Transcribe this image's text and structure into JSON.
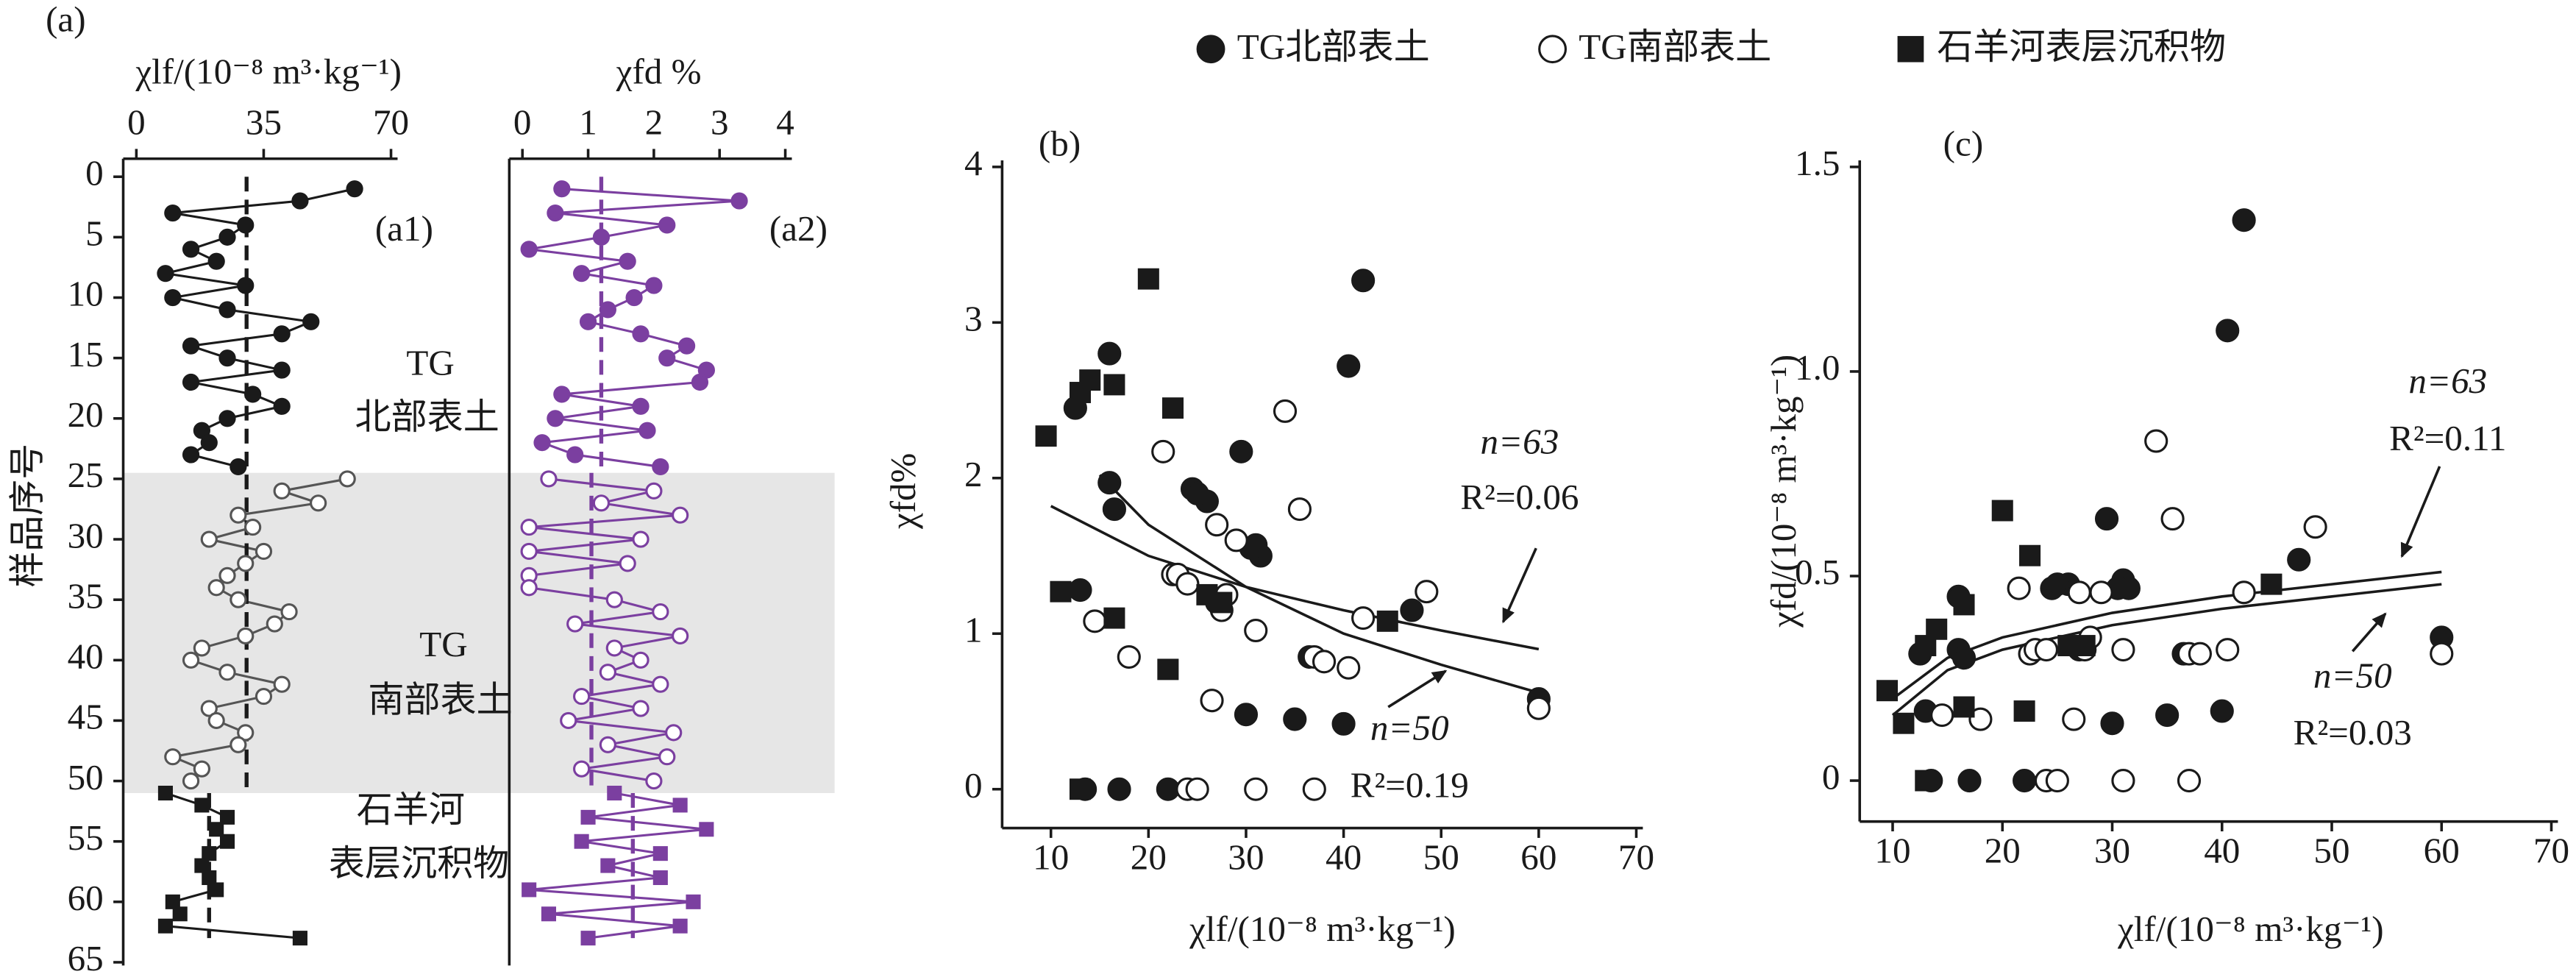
{
  "chart_data": [
    {
      "type": "profile",
      "label": "(a)",
      "panel_label": "(a1)",
      "xlabel": "χlf/(10⁻⁸ m³·kg⁻¹)",
      "ylabel": "样品序号",
      "xlim": [
        0,
        70
      ],
      "xticks": [
        0,
        35,
        70
      ],
      "ylim": [
        0,
        65
      ],
      "yticks": [
        0,
        5,
        10,
        15,
        20,
        25,
        30,
        35,
        40,
        45,
        50,
        55,
        60,
        65
      ],
      "shade": [
        24.5,
        51
      ],
      "annotations": [
        "TG",
        "北部表土",
        "TG",
        "南部表土",
        "石羊河",
        "表层沉积物"
      ],
      "mean_lines": [
        {
          "value": 30.3,
          "y": [
            0,
            51
          ]
        },
        {
          "value": 20,
          "y": [
            51,
            63
          ]
        }
      ],
      "series": [
        {
          "marker": "filled-circle",
          "color": "#1a1a1a",
          "y": [
            1,
            2,
            3,
            4,
            5,
            6,
            7,
            8,
            9,
            10,
            11,
            12,
            13,
            14,
            15,
            16,
            17,
            18,
            19,
            20,
            21,
            22,
            23,
            24
          ],
          "values": [
            60,
            45,
            10,
            30,
            25,
            15,
            22,
            8,
            30,
            10,
            25,
            48,
            40,
            15,
            25,
            40,
            15,
            32,
            40,
            25,
            18,
            20,
            15,
            28
          ]
        },
        {
          "marker": "open-circle",
          "color": "#555555",
          "y": [
            25,
            26,
            27,
            28,
            29,
            30,
            31,
            32,
            33,
            34,
            35,
            36,
            37,
            38,
            39,
            40,
            41,
            42,
            43,
            44,
            45,
            46,
            47,
            48,
            49,
            50
          ],
          "values": [
            58,
            40,
            50,
            28,
            32,
            20,
            35,
            30,
            25,
            22,
            28,
            42,
            38,
            30,
            18,
            15,
            25,
            40,
            35,
            20,
            22,
            30,
            28,
            10,
            18,
            15
          ]
        },
        {
          "marker": "square",
          "color": "#1a1a1a",
          "y": [
            51,
            52,
            53,
            54,
            55,
            56,
            57,
            58,
            59,
            60,
            61,
            62,
            63
          ],
          "values": [
            8,
            18,
            25,
            22,
            25,
            20,
            18,
            20,
            22,
            10,
            12,
            8,
            45
          ]
        }
      ]
    },
    {
      "type": "profile",
      "panel_label": "(a2)",
      "xlabel": "χfd %",
      "xlim": [
        0,
        4
      ],
      "xticks": [
        0,
        1,
        2,
        3,
        4
      ],
      "ylim": [
        0,
        65
      ],
      "mean_lines": [
        {
          "value": 1.2,
          "y": [
            0,
            24.5
          ]
        },
        {
          "value": 1.05,
          "y": [
            24.5,
            51
          ]
        },
        {
          "value": 1.68,
          "y": [
            51,
            63
          ]
        }
      ],
      "series": [
        {
          "marker": "filled-circle",
          "color": "#7b3fa0",
          "y": [
            1,
            2,
            3,
            4,
            5,
            6,
            7,
            8,
            9,
            10,
            11,
            12,
            13,
            14,
            15,
            16,
            17,
            18,
            19,
            20,
            21,
            22,
            23,
            24
          ],
          "values": [
            0.6,
            3.3,
            0.5,
            2.2,
            1.2,
            0.1,
            1.6,
            0.9,
            2.0,
            1.7,
            1.3,
            1.0,
            1.8,
            2.5,
            2.2,
            2.8,
            2.7,
            0.6,
            1.8,
            0.5,
            1.9,
            0.3,
            0.8,
            2.1
          ]
        },
        {
          "marker": "open-circle",
          "color": "#7b3fa0",
          "y": [
            25,
            26,
            27,
            28,
            29,
            30,
            31,
            32,
            33,
            34,
            35,
            36,
            37,
            38,
            39,
            40,
            41,
            42,
            43,
            44,
            45,
            46,
            47,
            48,
            49,
            50
          ],
          "values": [
            0.4,
            2.0,
            1.2,
            2.4,
            0.1,
            1.8,
            0.1,
            1.6,
            0.1,
            0.1,
            1.4,
            2.1,
            0.8,
            2.4,
            1.4,
            1.8,
            1.3,
            2.1,
            0.9,
            1.8,
            0.7,
            2.3,
            1.3,
            2.2,
            0.9,
            2.0
          ]
        },
        {
          "marker": "square",
          "color": "#7b3fa0",
          "y": [
            51,
            52,
            53,
            54,
            55,
            56,
            57,
            58,
            59,
            60,
            61,
            62,
            63
          ],
          "values": [
            1.4,
            2.4,
            1.0,
            2.8,
            0.9,
            2.1,
            1.3,
            2.1,
            0.1,
            2.6,
            0.4,
            2.4,
            1.0
          ]
        }
      ]
    },
    {
      "type": "scatter",
      "panel_label": "(b)",
      "xlabel": "χlf/(10⁻⁸ m³·kg⁻¹)",
      "ylabel": "χfd%",
      "xlim": [
        5,
        70
      ],
      "xticks": [
        10,
        20,
        30,
        40,
        50,
        60,
        70
      ],
      "ylim": [
        -0.25,
        4
      ],
      "yticks": [
        0,
        1,
        2,
        3,
        4
      ],
      "series": [
        {
          "name": "TG北部表土",
          "marker": "filled-circle",
          "color": "#1a1a1a",
          "x": [
            12.5,
            16,
            16,
            16.5,
            13,
            24.5,
            26,
            29.5,
            31,
            31.5,
            27,
            36.5,
            30,
            35,
            40,
            42,
            40.5,
            47,
            60,
            13.5,
            17,
            22,
            30.5,
            25
          ],
          "values": [
            2.45,
            2.8,
            1.97,
            1.8,
            1.28,
            1.93,
            1.85,
            2.17,
            1.57,
            1.5,
            1.2,
            0.85,
            0.48,
            0.45,
            0.42,
            3.27,
            2.72,
            1.15,
            0.58,
            0,
            0,
            0,
            1.55,
            1.9
          ]
        },
        {
          "name": "TG南部表土",
          "marker": "open-circle",
          "color": "#1a1a1a",
          "x": [
            14.5,
            18,
            21.5,
            22.5,
            23,
            24,
            27,
            27.5,
            29,
            31,
            34,
            35.5,
            37,
            38,
            40.5,
            42,
            48.5,
            60,
            26.5,
            24,
            25,
            31,
            37,
            28
          ],
          "values": [
            1.08,
            0.85,
            2.17,
            1.38,
            1.38,
            1.32,
            1.7,
            1.15,
            1.6,
            1.02,
            2.43,
            1.8,
            0.85,
            0.82,
            0.78,
            1.1,
            1.27,
            0.52,
            0.57,
            0,
            0,
            0,
            0,
            1.25
          ]
        },
        {
          "name": "石羊河表层沉积物",
          "marker": "square",
          "color": "#1a1a1a",
          "x": [
            9.5,
            11,
            13,
            14,
            16.5,
            16.5,
            20,
            22,
            22.5,
            26,
            27.5,
            44.5,
            13
          ],
          "values": [
            2.27,
            1.27,
            2.55,
            2.63,
            2.6,
            1.1,
            3.28,
            0.77,
            2.45,
            1.25,
            1.2,
            1.08,
            0
          ]
        }
      ],
      "fits": [
        {
          "labels": [
            "n=63",
            "R²=0.06"
          ],
          "x": [
            10,
            20,
            30,
            40,
            50,
            60
          ],
          "y": [
            1.82,
            1.5,
            1.3,
            1.15,
            1.02,
            0.9
          ]
        },
        {
          "labels": [
            "n=50",
            "R²=0.19"
          ],
          "x": [
            15,
            20,
            30,
            40,
            50,
            60
          ],
          "y": [
            2.02,
            1.7,
            1.3,
            1.0,
            0.8,
            0.62
          ]
        }
      ]
    },
    {
      "type": "scatter",
      "panel_label": "(c)",
      "xlabel": "χlf/(10⁻⁸ m³·kg⁻¹)",
      "ylabel": "χfd/(10⁻⁸ m³·kg⁻¹)",
      "xlim": [
        7,
        70
      ],
      "xticks": [
        10,
        20,
        30,
        40,
        50,
        60,
        70
      ],
      "ylim": [
        -0.1,
        1.5
      ],
      "yticks": [
        0,
        0.5,
        {
          "value": 1,
          "label": "1.0"
        },
        1.5
      ],
      "series": [
        {
          "marker": "filled-circle",
          "color": "#1a1a1a",
          "x": [
            12.5,
            16,
            16,
            16.5,
            13,
            24.5,
            26,
            29.5,
            31,
            31.5,
            27,
            36.5,
            30,
            35,
            40,
            42,
            40.5,
            47,
            60,
            13.5,
            17,
            22,
            30.5,
            25
          ],
          "values": [
            0.31,
            0.45,
            0.32,
            0.3,
            0.17,
            0.47,
            0.48,
            0.64,
            0.49,
            0.47,
            0.32,
            0.31,
            0.14,
            0.16,
            0.17,
            1.37,
            1.1,
            0.54,
            0.35,
            0,
            0,
            0,
            0.47,
            0.48
          ]
        },
        {
          "marker": "open-circle",
          "color": "#1a1a1a",
          "x": [
            14.5,
            18,
            21.5,
            22.5,
            23,
            24,
            27,
            27.5,
            29,
            31,
            34,
            35.5,
            37,
            38,
            40.5,
            42,
            48.5,
            60,
            26.5,
            24,
            25,
            31,
            37,
            28
          ],
          "values": [
            0.16,
            0.15,
            0.47,
            0.31,
            0.32,
            0.32,
            0.46,
            0.32,
            0.46,
            0.32,
            0.83,
            0.64,
            0.31,
            0.31,
            0.32,
            0.46,
            0.62,
            0.31,
            0.15,
            0,
            0,
            0,
            0,
            0.35
          ]
        },
        {
          "marker": "square",
          "color": "#1a1a1a",
          "x": [
            9.5,
            11,
            13,
            14,
            16.5,
            16.5,
            20,
            22,
            22.5,
            26,
            27.5,
            44.5,
            13
          ],
          "values": [
            0.22,
            0.14,
            0.33,
            0.37,
            0.43,
            0.18,
            0.66,
            0.17,
            0.55,
            0.33,
            0.33,
            0.48,
            0
          ]
        }
      ],
      "fits": [
        {
          "labels": [
            "n=63",
            "R²=0.11"
          ],
          "x": [
            10,
            15,
            20,
            30,
            40,
            50,
            60
          ],
          "y": [
            0.2,
            0.3,
            0.35,
            0.41,
            0.45,
            0.48,
            0.51
          ]
        },
        {
          "labels": [
            "n=50",
            "R²=0.03"
          ],
          "x": [
            10,
            15,
            20,
            30,
            40,
            50,
            60
          ],
          "y": [
            0.16,
            0.27,
            0.32,
            0.38,
            0.42,
            0.45,
            0.48
          ]
        }
      ]
    }
  ]
}
